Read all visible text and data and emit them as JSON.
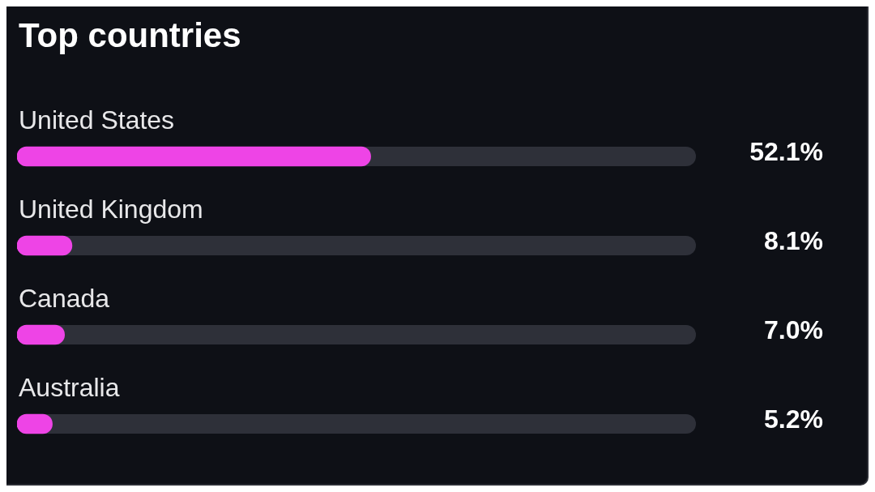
{
  "chart_data": {
    "type": "bar",
    "orientation": "horizontal",
    "title": "Top countries",
    "categories": [
      "United States",
      "United Kingdom",
      "Canada",
      "Australia"
    ],
    "values": [
      52.1,
      8.1,
      7.0,
      5.2
    ],
    "value_labels": [
      "52.1%",
      "8.1%",
      "7.0%",
      "5.2%"
    ],
    "color": "#ee44e6",
    "xlim": [
      0,
      100
    ],
    "tick_labels": "y",
    "legend": false
  }
}
